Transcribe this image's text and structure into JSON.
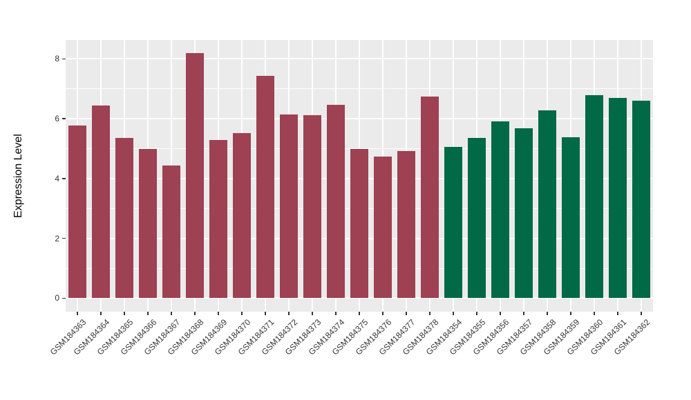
{
  "chart_data": {
    "type": "bar",
    "title": "",
    "xlabel": "",
    "ylabel": "Expression Level",
    "yticks": [
      0,
      2,
      4,
      6,
      8
    ],
    "minor_yticks": [
      1,
      3,
      5,
      7
    ],
    "ylim": [
      -0.45,
      8.63
    ],
    "grid": "major and minor horizontal, vertical at each category",
    "legend_position": "none",
    "panel_background": "#EBEBEB",
    "gridline_color": "#FFFFFF",
    "axis_text_color": "#333333",
    "x_tick_rotation_deg": 45,
    "series": [
      {
        "name": "red-group",
        "color": "#9E4152",
        "categories": [
          "GSM184363",
          "GSM184364",
          "GSM184365",
          "GSM184366",
          "GSM184367",
          "GSM184368",
          "GSM184369",
          "GSM184370",
          "GSM184371",
          "GSM184372",
          "GSM184373",
          "GSM184374",
          "GSM184375",
          "GSM184376",
          "GSM184377",
          "GSM184378"
        ],
        "values": [
          5.78,
          6.44,
          5.35,
          5.0,
          4.44,
          8.2,
          5.28,
          5.53,
          7.44,
          6.15,
          6.12,
          6.47,
          5.0,
          4.73,
          4.92,
          6.74
        ]
      },
      {
        "name": "green-group",
        "color": "#006946",
        "categories": [
          "GSM184354",
          "GSM184355",
          "GSM184356",
          "GSM184357",
          "GSM184358",
          "GSM184359",
          "GSM184360",
          "GSM184361",
          "GSM184362"
        ],
        "values": [
          5.05,
          5.35,
          5.91,
          5.68,
          6.29,
          5.39,
          6.79,
          6.69,
          6.61
        ]
      }
    ]
  }
}
